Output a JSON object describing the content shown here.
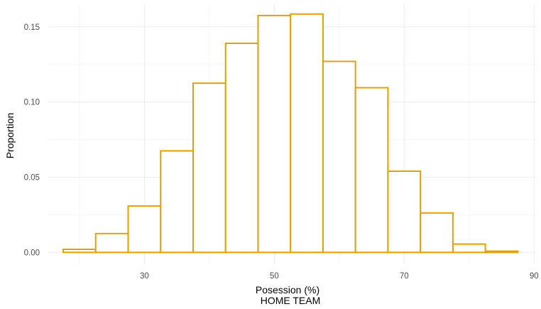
{
  "chart_data": {
    "type": "bar",
    "xlabel": "Posession (%)",
    "subtitle": "HOME TEAM",
    "ylabel": "Proportion",
    "xlim": [
      15.2,
      90.3
    ],
    "ylim": [
      -0.0079,
      0.165
    ],
    "x_ticks": [
      30,
      50,
      70,
      90
    ],
    "y_ticks": [
      0.0,
      0.05,
      0.1,
      0.15
    ],
    "x_tick_labels": [
      "30",
      "50",
      "70",
      "90"
    ],
    "y_tick_labels": [
      "0.00",
      "0.05",
      "0.10",
      "0.15"
    ],
    "grid": true,
    "legend": "none",
    "bar_color": "#E69F00",
    "bins": [
      {
        "x0": 17.5,
        "x1": 22.5,
        "value": 0.002
      },
      {
        "x0": 22.5,
        "x1": 27.5,
        "value": 0.0125
      },
      {
        "x0": 27.5,
        "x1": 32.5,
        "value": 0.0308
      },
      {
        "x0": 32.5,
        "x1": 37.5,
        "value": 0.0675
      },
      {
        "x0": 37.5,
        "x1": 42.5,
        "value": 0.1125
      },
      {
        "x0": 42.5,
        "x1": 47.5,
        "value": 0.139
      },
      {
        "x0": 47.5,
        "x1": 52.5,
        "value": 0.1575
      },
      {
        "x0": 52.5,
        "x1": 57.5,
        "value": 0.1585
      },
      {
        "x0": 57.5,
        "x1": 62.5,
        "value": 0.127
      },
      {
        "x0": 62.5,
        "x1": 67.5,
        "value": 0.1095
      },
      {
        "x0": 67.5,
        "x1": 72.5,
        "value": 0.054
      },
      {
        "x0": 72.5,
        "x1": 77.5,
        "value": 0.0262
      },
      {
        "x0": 77.5,
        "x1": 82.5,
        "value": 0.0055
      },
      {
        "x0": 82.5,
        "x1": 87.5,
        "value": 0.0008
      }
    ]
  }
}
